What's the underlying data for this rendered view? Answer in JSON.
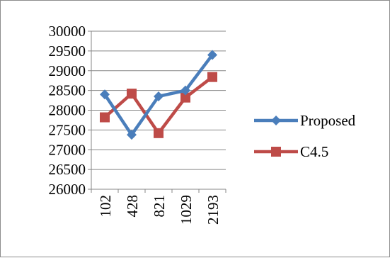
{
  "chart_data": {
    "type": "line",
    "title": "",
    "xlabel": "",
    "ylabel": "",
    "categories": [
      "102",
      "428",
      "821",
      "1029",
      "2193"
    ],
    "ylim": [
      26000,
      30000
    ],
    "yticks": [
      26000,
      26500,
      27000,
      27500,
      28000,
      28500,
      29000,
      29500,
      30000
    ],
    "grid": "horizontal",
    "legend": "right",
    "series": [
      {
        "name": "Proposed",
        "color": "#4a7ebb",
        "marker": "diamond",
        "values": [
          28400,
          27380,
          28350,
          28500,
          29400
        ]
      },
      {
        "name": "C4.5",
        "color": "#be4b48",
        "marker": "square",
        "values": [
          27820,
          28420,
          27420,
          28320,
          28840
        ]
      }
    ]
  }
}
